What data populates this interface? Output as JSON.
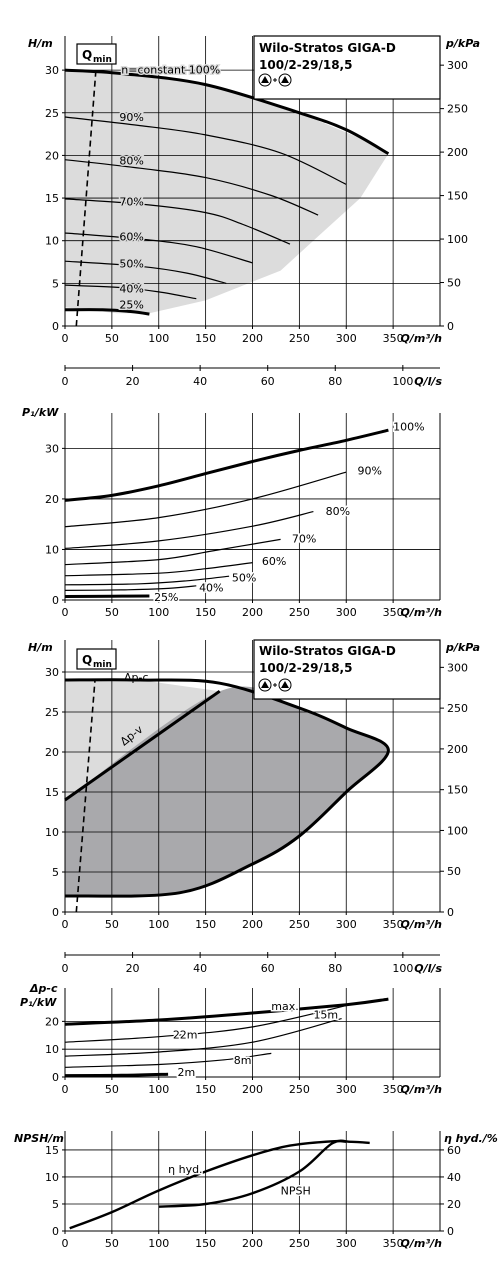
{
  "chart_data": [
    {
      "type": "line",
      "id": "hq1",
      "title": [
        "Wilo-Stratos GIGA-D",
        "100/2-29/18,5"
      ],
      "xlabel": "Q/m³/h",
      "ylabel": "H/m",
      "y2label": "p/kPa",
      "xlim": [
        0,
        400
      ],
      "ylim": [
        0,
        34
      ],
      "xticks": [
        0,
        50,
        100,
        150,
        200,
        250,
        300,
        350
      ],
      "yticks": [
        0,
        5,
        10,
        15,
        20,
        25,
        30
      ],
      "y2ticks": [
        0,
        50,
        100,
        150,
        200,
        250,
        300
      ],
      "qmin_label": "Q",
      "qmin_sub": "min",
      "qmin_line": [
        [
          12,
          0
        ],
        [
          33,
          30
        ]
      ],
      "region": [
        [
          0,
          30
        ],
        [
          60,
          29.6
        ],
        [
          150,
          28.3
        ],
        [
          250,
          25
        ],
        [
          330,
          21.3
        ],
        [
          345,
          20.2
        ],
        [
          315,
          15
        ],
        [
          270,
          10.5
        ],
        [
          230,
          6.5
        ],
        [
          150,
          3
        ],
        [
          90,
          1.5
        ],
        [
          55,
          1.5
        ],
        [
          0,
          2.2
        ]
      ],
      "series": [
        {
          "name": "n=constant 100%",
          "bold": true,
          "points": [
            [
              0,
              30
            ],
            [
              60,
              29.6
            ],
            [
              150,
              28.3
            ],
            [
              250,
              25
            ],
            [
              300,
              23
            ],
            [
              345,
              20.2
            ]
          ]
        },
        {
          "name": "90%",
          "points": [
            [
              0,
              24.5
            ],
            [
              80,
              23.5
            ],
            [
              150,
              22.4
            ],
            [
              230,
              20.3
            ],
            [
              300,
              16.6
            ]
          ]
        },
        {
          "name": "80%",
          "points": [
            [
              0,
              19.5
            ],
            [
              80,
              18.5
            ],
            [
              150,
              17.4
            ],
            [
              220,
              15.3
            ],
            [
              270,
              13
            ]
          ]
        },
        {
          "name": "70%",
          "points": [
            [
              0,
              14.9
            ],
            [
              80,
              14.3
            ],
            [
              150,
              13.3
            ],
            [
              190,
              11.9
            ],
            [
              240,
              9.6
            ]
          ]
        },
        {
          "name": "60%",
          "points": [
            [
              0,
              10.9
            ],
            [
              80,
              10.2
            ],
            [
              140,
              9.3
            ],
            [
              200,
              7.4
            ]
          ]
        },
        {
          "name": "50%",
          "points": [
            [
              0,
              7.6
            ],
            [
              80,
              7
            ],
            [
              130,
              6.2
            ],
            [
              172,
              5
            ]
          ]
        },
        {
          "name": "40%",
          "points": [
            [
              0,
              4.8
            ],
            [
              60,
              4.5
            ],
            [
              100,
              4
            ],
            [
              140,
              3.2
            ]
          ]
        },
        {
          "name": "25%",
          "bold": true,
          "points": [
            [
              0,
              1.9
            ],
            [
              40,
              1.9
            ],
            [
              70,
              1.7
            ],
            [
              90,
              1.4
            ]
          ]
        }
      ],
      "label_pos": [
        [
          60,
          30.1
        ],
        [
          58,
          24.5
        ],
        [
          58,
          19.4
        ],
        [
          58,
          14.6
        ],
        [
          58,
          10.5
        ],
        [
          58,
          7.3
        ],
        [
          58,
          4.4
        ],
        [
          58,
          2.5
        ]
      ]
    },
    {
      "type": "axis",
      "id": "qls1",
      "xlabel": "Q/l/s",
      "xlim": [
        0,
        111
      ],
      "xticks": [
        0,
        20,
        40,
        60,
        80,
        100
      ]
    },
    {
      "type": "line",
      "id": "p1",
      "xlabel": "Q/m³/h",
      "ylabel": "P₁/kW",
      "xlim": [
        0,
        400
      ],
      "ylim": [
        0,
        37
      ],
      "xticks": [
        0,
        50,
        100,
        150,
        200,
        250,
        300,
        350
      ],
      "yticks": [
        0,
        10,
        20,
        30
      ],
      "series": [
        {
          "name": "100%",
          "bold": true,
          "points": [
            [
              0,
              19.7
            ],
            [
              50,
              20.7
            ],
            [
              100,
              22.6
            ],
            [
              150,
              25
            ],
            [
              200,
              27.4
            ],
            [
              250,
              29.6
            ],
            [
              300,
              31.6
            ],
            [
              345,
              33.6
            ]
          ]
        },
        {
          "name": "90%",
          "points": [
            [
              0,
              14.5
            ],
            [
              100,
              16.3
            ],
            [
              200,
              20
            ],
            [
              300,
              25.3
            ]
          ]
        },
        {
          "name": "80%",
          "points": [
            [
              0,
              10.2
            ],
            [
              100,
              11.7
            ],
            [
              200,
              14.6
            ],
            [
              265,
              17.5
            ]
          ]
        },
        {
          "name": "70%",
          "points": [
            [
              0,
              7
            ],
            [
              100,
              8
            ],
            [
              160,
              9.8
            ],
            [
              230,
              12
            ]
          ]
        },
        {
          "name": "60%",
          "points": [
            [
              0,
              4.8
            ],
            [
              100,
              5.3
            ],
            [
              150,
              6.2
            ],
            [
              200,
              7.4
            ]
          ]
        },
        {
          "name": "50%",
          "points": [
            [
              0,
              3
            ],
            [
              80,
              3.2
            ],
            [
              130,
              3.8
            ],
            [
              175,
              4.7
            ]
          ]
        },
        {
          "name": "40%",
          "points": [
            [
              0,
              1.9
            ],
            [
              60,
              2
            ],
            [
              110,
              2.3
            ],
            [
              140,
              2.8
            ]
          ]
        },
        {
          "name": "25%",
          "bold": true,
          "points": [
            [
              0,
              0.7
            ],
            [
              50,
              0.75
            ],
            [
              90,
              0.8
            ]
          ]
        }
      ],
      "label_pos": [
        [
          350,
          34.3
        ],
        [
          312,
          25.6
        ],
        [
          278,
          17.6
        ],
        [
          242,
          12.2
        ],
        [
          210,
          7.7
        ],
        [
          178,
          4.5
        ],
        [
          143,
          2.5
        ],
        [
          95,
          0.6
        ]
      ]
    },
    {
      "type": "area",
      "id": "hq2",
      "title": [
        "Wilo-Stratos GIGA-D",
        "100/2-29/18,5"
      ],
      "xlabel": "Q/m³/h",
      "ylabel": "H/m",
      "y2label": "p/kPa",
      "xlim": [
        0,
        400
      ],
      "ylim": [
        0,
        34
      ],
      "xticks": [
        0,
        50,
        100,
        150,
        200,
        250,
        300,
        350
      ],
      "yticks": [
        0,
        5,
        10,
        15,
        20,
        25,
        30
      ],
      "y2ticks": [
        0,
        50,
        100,
        150,
        200,
        250,
        300
      ],
      "qmin_label": "Q",
      "qmin_sub": "min",
      "qmin_line": [
        [
          12,
          0
        ],
        [
          32,
          29
        ]
      ],
      "light_region": [
        [
          0,
          29
        ],
        [
          80,
          29
        ],
        [
          165,
          27.6
        ],
        [
          0,
          14
        ]
      ],
      "dark_region": [
        [
          0,
          14
        ],
        [
          165,
          27.6
        ],
        [
          250,
          25.5
        ],
        [
          300,
          23
        ],
        [
          345,
          20.2
        ],
        [
          300,
          15
        ],
        [
          250,
          9.5
        ],
        [
          200,
          6
        ],
        [
          122,
          2.4
        ],
        [
          0,
          2
        ]
      ],
      "outline": [
        [
          0,
          29
        ],
        [
          80,
          29
        ],
        [
          165,
          28.6
        ],
        [
          250,
          25.5
        ],
        [
          300,
          23
        ],
        [
          345,
          20.2
        ],
        [
          300,
          15
        ],
        [
          250,
          9.5
        ],
        [
          200,
          6
        ],
        [
          122,
          2.4
        ],
        [
          0,
          2
        ]
      ],
      "dpv_line": [
        [
          0,
          14
        ],
        [
          165,
          27.6
        ]
      ],
      "dpc_label": "Δp-c",
      "dpv_label": "Δp-v"
    },
    {
      "type": "axis",
      "id": "qls2",
      "xlabel": "Q/l/s",
      "xlim": [
        0,
        111
      ],
      "xticks": [
        0,
        20,
        40,
        60,
        80,
        100
      ]
    },
    {
      "type": "line",
      "id": "p2",
      "xlabel": "Q/m³/h",
      "ylabel": [
        "Δp-c",
        "P₁/kW"
      ],
      "xlim": [
        0,
        400
      ],
      "ylim": [
        0,
        32
      ],
      "xticks": [
        0,
        50,
        100,
        150,
        200,
        250,
        300,
        350
      ],
      "yticks": [
        0,
        10,
        20
      ],
      "series": [
        {
          "name": "max.",
          "bold": true,
          "points": [
            [
              0,
              19
            ],
            [
              100,
              20.5
            ],
            [
              200,
              23
            ],
            [
              300,
              26
            ],
            [
              345,
              28
            ]
          ]
        },
        {
          "name": "22m",
          "points": [
            [
              0,
              12.5
            ],
            [
              100,
              14.5
            ],
            [
              200,
              18
            ],
            [
              310,
              26.5
            ]
          ]
        },
        {
          "name": "15m",
          "points": [
            [
              0,
              7.5
            ],
            [
              100,
              9
            ],
            [
              200,
              12.5
            ],
            [
              295,
              21
            ]
          ]
        },
        {
          "name": "8m",
          "points": [
            [
              0,
              3.5
            ],
            [
              100,
              4.5
            ],
            [
              170,
              6.2
            ],
            [
              220,
              8.5
            ]
          ]
        },
        {
          "name": "2m",
          "bold": true,
          "points": [
            [
              0,
              0.5
            ],
            [
              60,
              0.6
            ],
            [
              110,
              1
            ]
          ]
        }
      ],
      "label_pos": [
        [
          220,
          25.5
        ],
        [
          115,
          15.2
        ],
        [
          265,
          22.5
        ],
        [
          180,
          6.2
        ],
        [
          120,
          1.8
        ]
      ]
    },
    {
      "type": "line",
      "id": "npsh",
      "xlabel": "Q/m³/h",
      "ylabel": "NPSH/m",
      "y2label": "η hyd./%",
      "xlim": [
        0,
        400
      ],
      "ylim": [
        0,
        18.5
      ],
      "y2lim": [
        0,
        74
      ],
      "xticks": [
        0,
        50,
        100,
        150,
        200,
        250,
        300,
        350
      ],
      "yticks": [
        0,
        5,
        10,
        15
      ],
      "y2ticks": [
        0,
        20,
        40,
        60
      ],
      "series": [
        {
          "name": "NPSH",
          "points": [
            [
              100,
              4.5
            ],
            [
              150,
              5
            ],
            [
              200,
              7
            ],
            [
              250,
              11
            ],
            [
              285,
              16.2
            ],
            [
              305,
              16.5
            ],
            [
              325,
              16.3
            ]
          ]
        },
        {
          "name": "η hyd.",
          "points": [
            [
              5,
              0.5
            ],
            [
              50,
              3.5
            ],
            [
              100,
              7.5
            ],
            [
              150,
              11
            ],
            [
              200,
              14
            ],
            [
              240,
              15.8
            ],
            [
              285,
              16.6
            ],
            [
              300,
              16.5
            ]
          ]
        }
      ],
      "label_pos": [
        [
          230,
          7.5
        ],
        [
          110,
          11.5
        ]
      ]
    }
  ]
}
